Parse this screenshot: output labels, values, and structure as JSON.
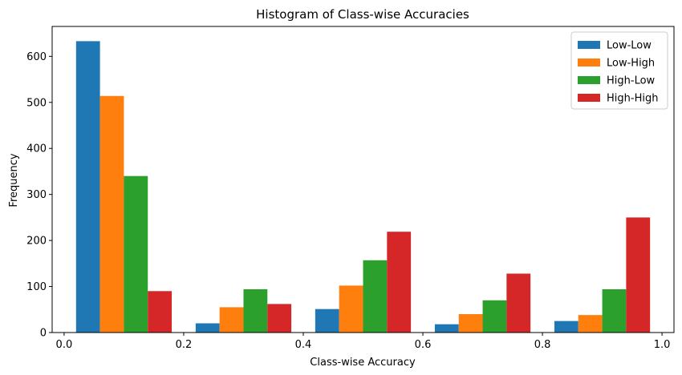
{
  "chart_data": {
    "type": "bar",
    "title": "Histogram of Class-wise Accuracies",
    "xlabel": "Class-wise Accuracy",
    "ylabel": "Frequency",
    "xlim": [
      -0.02,
      1.02
    ],
    "ylim": [
      0,
      665
    ],
    "xticks": [
      "0.0",
      "0.2",
      "0.4",
      "0.6",
      "0.8",
      "1.0"
    ],
    "yticks": [
      "0",
      "100",
      "200",
      "300",
      "400",
      "500",
      "600"
    ],
    "bin_edges": [
      0.0,
      0.2,
      0.4,
      0.6,
      0.8,
      1.0
    ],
    "legend_position": "top-right",
    "grid": false,
    "series": [
      {
        "name": "Low-Low",
        "color": "#1f77b4",
        "values": [
          633,
          20,
          51,
          18,
          25
        ]
      },
      {
        "name": "Low-High",
        "color": "#ff7f0e",
        "values": [
          514,
          55,
          102,
          40,
          38
        ]
      },
      {
        "name": "High-Low",
        "color": "#2ca02c",
        "values": [
          340,
          94,
          157,
          70,
          94
        ]
      },
      {
        "name": "High-High",
        "color": "#d62728",
        "values": [
          90,
          62,
          219,
          128,
          250
        ]
      }
    ]
  }
}
